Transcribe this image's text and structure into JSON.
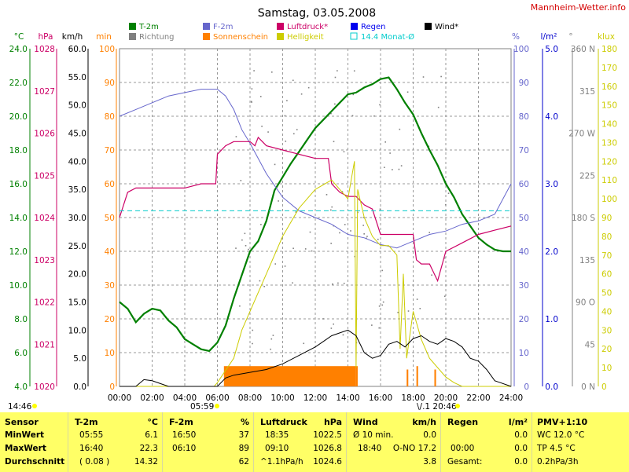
{
  "title": "Samstag, 03.05.2008",
  "site": "Mannheim-Wetter.info",
  "legend": [
    {
      "label": "T-2m",
      "color": "#008000",
      "text_color": "#008000",
      "kind": "box"
    },
    {
      "label": "Richtung",
      "color": "#808080",
      "text_color": "#808080",
      "kind": "box"
    },
    {
      "label": "F-2m",
      "color": "#6666cc",
      "text_color": "#6666cc",
      "kind": "box"
    },
    {
      "label": "Sonnenschein",
      "color": "#ff8000",
      "text_color": "#ff8000",
      "kind": "box"
    },
    {
      "label": "Luftdruck*",
      "color": "#cc0066",
      "text_color": "#cc0066",
      "kind": "box"
    },
    {
      "label": "Helligkeit",
      "color": "#cccc00",
      "text_color": "#cccc00",
      "kind": "box"
    },
    {
      "label": "Regen",
      "color": "#0000ee",
      "text_color": "#0000ee",
      "kind": "box"
    },
    {
      "label": "14.4 Monat-Ø",
      "color": "#00cccc",
      "text_color": "#00cccc",
      "kind": "outline"
    },
    {
      "label": "Wind*",
      "color": "#000000",
      "text_color": "#000000",
      "kind": "box"
    }
  ],
  "axis_units": {
    "temp": "°C",
    "press": "hPa",
    "wind": "km/h",
    "sun": "min",
    "hum": "%",
    "rain": "l/m²",
    "dir": "°",
    "lux": "klux"
  },
  "colors": {
    "temp": "#008000",
    "press": "#cc0066",
    "wind": "#000000",
    "sun": "#ff8000",
    "hum": "#6666cc",
    "rain": "#0000cc",
    "dir": "#808080",
    "lux": "#cccc00",
    "monat": "#00cccc"
  },
  "axis_ticks": {
    "temp": [
      "24.0",
      "22.0",
      "20.0",
      "18.0",
      "16.0",
      "14.0",
      "12.0",
      "10.0",
      "8.0",
      "6.0",
      "4.0"
    ],
    "press": [
      "1028",
      "1027",
      "1026",
      "1025",
      "1024",
      "1023",
      "1022",
      "1021",
      "1020"
    ],
    "wind": [
      "60.0",
      "55.0",
      "50.0",
      "45.0",
      "40.0",
      "35.0",
      "30.0",
      "25.0",
      "20.0",
      "15.0",
      "10.0",
      "5.0",
      "0.0"
    ],
    "sun": [
      "100",
      "90",
      "80",
      "70",
      "60",
      "50",
      "40",
      "30",
      "20",
      "10",
      "0"
    ],
    "hum": [
      "100",
      "90",
      "80",
      "70",
      "60",
      "50",
      "40",
      "30",
      "20",
      "10",
      "0"
    ],
    "rain": [
      "5.0",
      "4.0",
      "3.0",
      "2.0",
      "1.0",
      "0.0"
    ],
    "dir": [
      "360 N",
      "315",
      "270 W",
      "225",
      "180 S",
      "135",
      "90 O",
      "45",
      "0 N"
    ],
    "lux": [
      "180",
      "170",
      "160",
      "150",
      "140",
      "130",
      "120",
      "110",
      "100",
      "90",
      "80",
      "70",
      "60",
      "50",
      "40",
      "30",
      "20",
      "10",
      "0"
    ]
  },
  "x_ticks": [
    "00:00",
    "02:00",
    "04:00",
    "06:00",
    "08:00",
    "10:00",
    "12:00",
    "14:00",
    "16:00",
    "18:00",
    "20:00",
    "22:00",
    "24:00"
  ],
  "markers": {
    "left": "14:46",
    "sunrise": "05:59",
    "sunset": "20:46",
    "sunset_prefix": "\\/.1"
  },
  "chart_data": {
    "type": "line",
    "x_unit": "hours",
    "xlim": [
      0,
      24
    ],
    "series": [
      {
        "name": "T-2m",
        "unit": "°C",
        "ylim": [
          4,
          24
        ],
        "x": [
          0,
          0.5,
          1,
          1.5,
          2,
          2.5,
          3,
          3.5,
          4,
          4.5,
          5,
          5.5,
          6,
          6.5,
          7,
          7.5,
          8,
          8.5,
          9,
          9.5,
          10,
          10.5,
          11,
          11.5,
          12,
          12.5,
          13,
          13.5,
          14,
          14.5,
          15,
          15.5,
          16,
          16.5,
          17,
          17.5,
          18,
          18.5,
          19,
          19.5,
          20,
          20.5,
          21,
          21.5,
          22,
          22.5,
          23,
          23.5,
          24
        ],
        "values": [
          9.0,
          8.6,
          7.8,
          8.3,
          8.6,
          8.5,
          7.9,
          7.5,
          6.8,
          6.5,
          6.2,
          6.1,
          6.6,
          7.6,
          9.2,
          10.6,
          12.0,
          12.6,
          13.8,
          15.6,
          16.4,
          17.2,
          17.9,
          18.6,
          19.3,
          19.8,
          20.3,
          20.8,
          21.3,
          21.4,
          21.7,
          21.9,
          22.2,
          22.3,
          21.6,
          20.8,
          20.1,
          19.0,
          18.0,
          17.1,
          16.0,
          15.2,
          14.2,
          13.5,
          12.8,
          12.4,
          12.1,
          12.0,
          12.0
        ]
      },
      {
        "name": "F-2m",
        "unit": "%",
        "ylim": [
          0,
          100
        ],
        "x": [
          0,
          1,
          2,
          3,
          4,
          5,
          6,
          6.5,
          7,
          7.5,
          8,
          9,
          10,
          11,
          12,
          13,
          14,
          15,
          16,
          17,
          18,
          19,
          20,
          21,
          22,
          23,
          24
        ],
        "values": [
          80,
          82,
          84,
          86,
          87,
          88,
          88,
          86,
          82,
          76,
          72,
          63,
          56,
          52,
          50,
          48,
          45,
          44,
          42,
          41,
          43,
          45,
          46,
          48,
          49,
          51,
          60
        ]
      },
      {
        "name": "Luftdruck*",
        "unit": "hPa",
        "ylim": [
          1020,
          1028
        ],
        "x": [
          0,
          0.5,
          1,
          2,
          3,
          4,
          5,
          5.9,
          6,
          6.5,
          7,
          7.5,
          8,
          8.3,
          8.5,
          9,
          10,
          11,
          12,
          12.8,
          13,
          13.5,
          14,
          14.5,
          15,
          15.5,
          16,
          17,
          18,
          18.2,
          18.5,
          19,
          19.5,
          20,
          21,
          22,
          23,
          24
        ],
        "values": [
          1024.0,
          1024.6,
          1024.7,
          1024.7,
          1024.7,
          1024.7,
          1024.8,
          1024.8,
          1025.5,
          1025.7,
          1025.8,
          1025.8,
          1025.8,
          1025.7,
          1025.9,
          1025.7,
          1025.6,
          1025.5,
          1025.4,
          1025.4,
          1024.8,
          1024.6,
          1024.5,
          1024.5,
          1024.3,
          1024.2,
          1023.6,
          1023.6,
          1023.6,
          1023.0,
          1022.9,
          1022.9,
          1022.5,
          1023.2,
          1023.4,
          1023.6,
          1023.7,
          1023.8
        ]
      },
      {
        "name": "Helligkeit",
        "unit": "klux",
        "ylim": [
          0,
          180
        ],
        "x": [
          0,
          5.8,
          6,
          7,
          7.5,
          8,
          9,
          10,
          11,
          12,
          13,
          13.5,
          14,
          14.4,
          14.5,
          14.6,
          15,
          15.5,
          16,
          16.5,
          17,
          17.2,
          17.4,
          17.6,
          18,
          18.5,
          19,
          20,
          20.5,
          21,
          24
        ],
        "values": [
          0,
          0,
          2,
          15,
          30,
          40,
          60,
          80,
          95,
          105,
          110,
          105,
          100,
          120,
          10,
          105,
          90,
          80,
          75,
          75,
          70,
          20,
          60,
          15,
          40,
          25,
          15,
          5,
          2,
          0,
          0
        ]
      },
      {
        "name": "Wind*",
        "unit": "km/h",
        "ylim": [
          0,
          60
        ],
        "x": [
          0,
          1,
          1.5,
          2,
          2.5,
          3,
          4,
          5,
          6,
          6.5,
          7,
          8,
          9,
          10,
          11,
          12,
          12.5,
          13,
          13.5,
          14,
          14.5,
          15,
          15.5,
          16,
          16.5,
          17,
          17.5,
          18,
          18.5,
          19,
          19.5,
          20,
          20.5,
          21,
          21.5,
          22,
          22.5,
          23,
          24
        ],
        "values": [
          0,
          0,
          1.2,
          1.0,
          0.5,
          0,
          0,
          0,
          0,
          1.5,
          2.0,
          2.5,
          3.0,
          4.0,
          5.5,
          7.0,
          8.0,
          9.0,
          9.5,
          10.0,
          9.0,
          6.0,
          5.0,
          5.5,
          7.5,
          8.0,
          7.0,
          8.5,
          9.0,
          8.0,
          7.5,
          8.5,
          8.0,
          7.0,
          5.0,
          4.5,
          3.0,
          1.0,
          0
        ]
      },
      {
        "name": "Sonnenschein",
        "unit": "min",
        "ylim": [
          0,
          100
        ],
        "x": [
          0,
          6.3,
          6.4,
          14.5,
          14.6,
          17.6,
          17.7,
          18.2,
          18.3,
          19.3,
          19.4,
          24
        ],
        "values": [
          0,
          0,
          6,
          6,
          0,
          5,
          0,
          6,
          0,
          5,
          0,
          0
        ]
      },
      {
        "name": "14.4 Monat-Ø",
        "unit": "°C",
        "x": [
          0,
          24
        ],
        "values": [
          14.4,
          14.4
        ]
      }
    ]
  },
  "stats": {
    "sensor": {
      "header": "Sensor",
      "rows": [
        "MinWert",
        "MaxWert",
        "Durchschnitt"
      ]
    },
    "temp": {
      "header": "T-2m",
      "unit": "°C",
      "rows": [
        [
          "05:55",
          "6.1"
        ],
        [
          "16:40",
          "22.3"
        ],
        [
          "( 0.08 )",
          "14.32"
        ]
      ]
    },
    "hum": {
      "header": "F-2m",
      "unit": "%",
      "rows": [
        [
          "16:50",
          "37"
        ],
        [
          "06:10",
          "89"
        ],
        [
          "",
          "62"
        ]
      ]
    },
    "press": {
      "header": "Luftdruck",
      "unit": "hPa",
      "rows": [
        [
          "18:35",
          "1022.5"
        ],
        [
          "09:10",
          "1026.8"
        ],
        [
          "^1.1hPa/h",
          "1024.6"
        ]
      ]
    },
    "wind": {
      "header": "Wind",
      "unit": "km/h",
      "rows": [
        [
          "Ø 10 min.",
          "0.0"
        ],
        [
          "18:40",
          "O-NO 17.2"
        ],
        [
          "",
          "3.8"
        ]
      ]
    },
    "rain": {
      "header": "Regen",
      "unit": "l/m²",
      "rows": [
        [
          "",
          "0.0"
        ],
        [
          "00:00",
          "0.0"
        ],
        [
          "Gesamt:",
          "0.0"
        ]
      ]
    },
    "pmv": {
      "header": "PMV+1:10",
      "rows": [
        "WC 12.0 °C",
        "TP 4.5 °C",
        "0.2hPa/3h"
      ]
    }
  }
}
